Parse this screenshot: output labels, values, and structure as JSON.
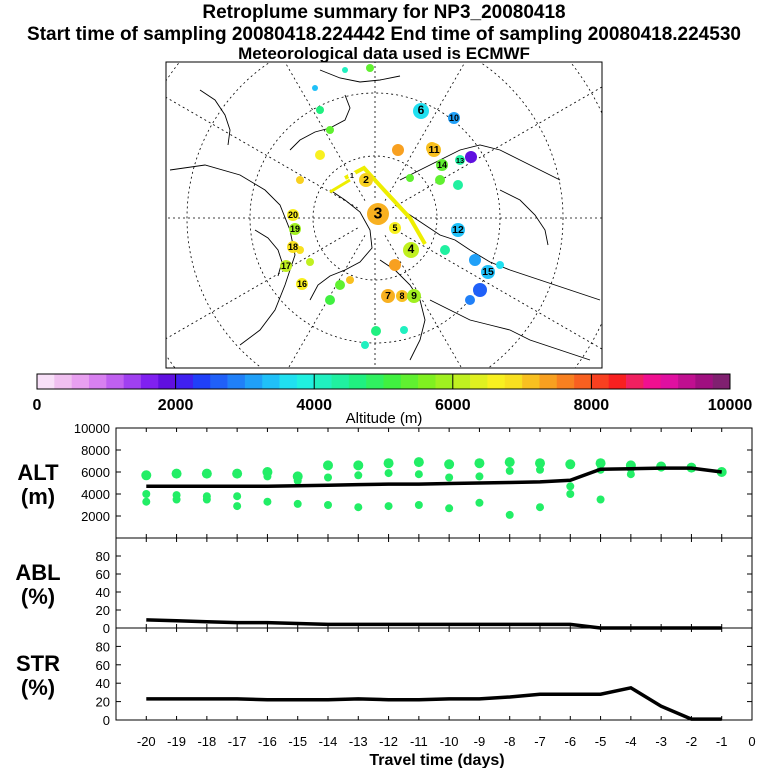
{
  "header": {
    "title": "Retroplume summary for NP3_20080418",
    "sampling": "Start time of sampling 20080418.224442     End time of sampling 20080418.224530",
    "met": "Meteorological data used is ECMWF"
  },
  "colors": {
    "background": "#ffffff",
    "frame": "#000000",
    "dots": "#22ee66",
    "line": "#000000",
    "colorbar": [
      "#f8e0f8",
      "#f0c0f0",
      "#e8a0f0",
      "#d880f0",
      "#c060f0",
      "#a040f0",
      "#8020f0",
      "#6010e0",
      "#4020f0",
      "#2040f8",
      "#2060f8",
      "#2080f8",
      "#20a0f8",
      "#20c0f8",
      "#20e0f0",
      "#20f0e0",
      "#20f0c0",
      "#20f0a0",
      "#20f080",
      "#30f060",
      "#40f040",
      "#60f030",
      "#80f020",
      "#a0f020",
      "#c0f020",
      "#e0f020",
      "#f8f020",
      "#f8e020",
      "#f8c020",
      "#f8a020",
      "#f88020",
      "#f86020",
      "#f84020",
      "#f82020",
      "#f02060",
      "#f01090",
      "#e010a0",
      "#c01090",
      "#a01080",
      "#802070"
    ]
  },
  "map": {
    "labels": [
      "1",
      "2",
      "3",
      "4",
      "5",
      "6",
      "7",
      "8",
      "9",
      "10",
      "11",
      "12",
      "13",
      "14",
      "15",
      "16",
      "17",
      "18",
      "19",
      "20"
    ]
  },
  "colorbar": {
    "label": "Altitude (m)",
    "ticks": [
      "0",
      "2000",
      "4000",
      "6000",
      "8000",
      "10000"
    ]
  },
  "chart_data": [
    {
      "type": "line",
      "name": "ALT",
      "ylabel": "ALT\n(m)",
      "ylabel_lines": [
        "ALT",
        "(m)"
      ],
      "ylim": [
        0,
        10000
      ],
      "yticks": [
        "10000",
        "8000",
        "6000",
        "4000",
        "2000"
      ],
      "x": [
        -20,
        -19,
        -18,
        -17,
        -16,
        -15,
        -14,
        -13,
        -12,
        -11,
        -10,
        -9,
        -8,
        -7,
        -6,
        -5,
        -4,
        -3,
        -2,
        -1
      ],
      "series": [
        {
          "name": "median altitude",
          "values": [
            4700,
            4700,
            4700,
            4700,
            4700,
            4750,
            4800,
            4850,
            4900,
            4900,
            4950,
            5000,
            5050,
            5100,
            5250,
            6250,
            6300,
            6350,
            6350,
            6000
          ]
        }
      ],
      "clusters": [
        {
          "x": -20,
          "alts": [
            5700,
            4000,
            3300
          ]
        },
        {
          "x": -19,
          "alts": [
            5850,
            3900,
            3500
          ]
        },
        {
          "x": -18,
          "alts": [
            5850,
            3800,
            3500
          ]
        },
        {
          "x": -17,
          "alts": [
            5850,
            3800,
            2900
          ]
        },
        {
          "x": -16,
          "alts": [
            6000,
            5600,
            3300
          ]
        },
        {
          "x": -15,
          "alts": [
            5600,
            5200,
            3100
          ]
        },
        {
          "x": -14,
          "alts": [
            6600,
            5500,
            3000
          ]
        },
        {
          "x": -13,
          "alts": [
            6600,
            5700,
            2800
          ]
        },
        {
          "x": -12,
          "alts": [
            6800,
            5900,
            2900
          ]
        },
        {
          "x": -11,
          "alts": [
            6900,
            5800,
            3000
          ]
        },
        {
          "x": -10,
          "alts": [
            6700,
            5500,
            2700
          ]
        },
        {
          "x": -9,
          "alts": [
            6800,
            5600,
            3200
          ]
        },
        {
          "x": -8,
          "alts": [
            6900,
            6100,
            2100
          ]
        },
        {
          "x": -7,
          "alts": [
            6800,
            6200,
            2800
          ]
        },
        {
          "x": -6,
          "alts": [
            6700,
            4700,
            4000
          ]
        },
        {
          "x": -5,
          "alts": [
            6800,
            6200,
            3500
          ]
        },
        {
          "x": -4,
          "alts": [
            6600,
            6300,
            5800
          ]
        },
        {
          "x": -3,
          "alts": [
            6500,
            6400
          ]
        },
        {
          "x": -2,
          "alts": [
            6400
          ]
        },
        {
          "x": -1,
          "alts": [
            6000
          ]
        }
      ]
    },
    {
      "type": "line",
      "name": "ABL",
      "ylabel": "ABL\n(%)",
      "ylabel_lines": [
        "ABL",
        "(%)"
      ],
      "ylim": [
        0,
        100
      ],
      "yticks": [
        "80",
        "60",
        "40",
        "20",
        "0"
      ],
      "x": [
        -20,
        -19,
        -18,
        -17,
        -16,
        -15,
        -14,
        -13,
        -12,
        -11,
        -10,
        -9,
        -8,
        -7,
        -6,
        -5,
        -4,
        -3,
        -2,
        -1
      ],
      "series": [
        {
          "name": "fraction in ABL",
          "values": [
            9,
            8,
            7,
            6,
            6,
            5,
            4,
            4,
            4,
            4,
            4,
            4,
            4,
            4,
            4,
            0,
            0,
            0,
            0,
            0
          ]
        }
      ]
    },
    {
      "type": "line",
      "name": "STR",
      "ylabel": "STR\n(%)",
      "ylabel_lines": [
        "STR",
        "(%)"
      ],
      "ylim": [
        0,
        100
      ],
      "yticks": [
        "80",
        "60",
        "40",
        "20",
        "0"
      ],
      "x": [
        -20,
        -19,
        -18,
        -17,
        -16,
        -15,
        -14,
        -13,
        -12,
        -11,
        -10,
        -9,
        -8,
        -7,
        -6,
        -5,
        -4,
        -3,
        -2,
        -1
      ],
      "series": [
        {
          "name": "fraction in stratosphere",
          "values": [
            23,
            23,
            23,
            23,
            22,
            22,
            22,
            23,
            22,
            22,
            23,
            23,
            25,
            28,
            28,
            28,
            35,
            15,
            1,
            1
          ]
        }
      ]
    }
  ],
  "xaxis": {
    "ticks": [
      "-20",
      "-19",
      "-18",
      "-17",
      "-16",
      "-15",
      "-14",
      "-13",
      "-12",
      "-11",
      "-10",
      "-9",
      "-8",
      "-7",
      "-6",
      "-5",
      "-4",
      "-3",
      "-2",
      "-1",
      "0"
    ],
    "label": "Travel time (days)"
  }
}
